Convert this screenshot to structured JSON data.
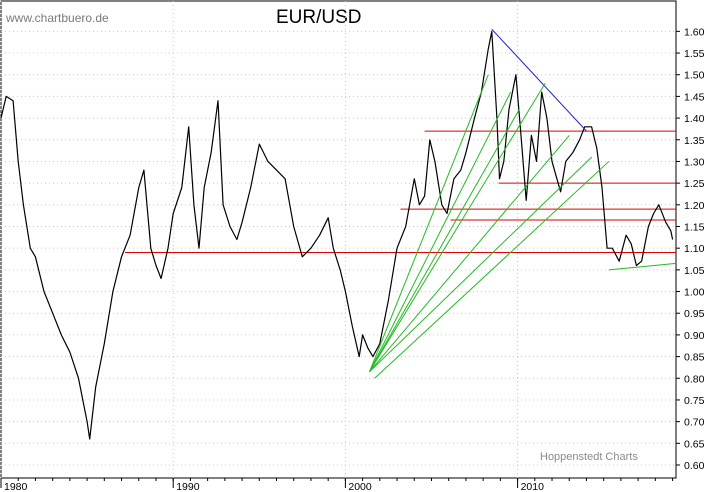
{
  "watermark": "www.chartbuero.de",
  "credit": "Hoppenstedt Charts",
  "chart_data": {
    "type": "line",
    "title": "EUR/USD",
    "xlabel": "",
    "ylabel": "",
    "x_ticks": [
      "1980",
      "1990",
      "2000",
      "2010"
    ],
    "y_ticks": [
      "0.60",
      "0.65",
      "0.70",
      "0.75",
      "0.80",
      "0.85",
      "0.90",
      "0.95",
      "1.00",
      "1.05",
      "1.10",
      "1.15",
      "1.20",
      "1.25",
      "1.30",
      "1.35",
      "1.40",
      "1.45",
      "1.50",
      "1.55",
      "1.60"
    ],
    "xlim": [
      1980,
      2019.2
    ],
    "ylim": [
      0.57,
      1.67
    ],
    "grid": true,
    "series": [
      {
        "color": "#000000",
        "points": [
          [
            1980.0,
            1.4
          ],
          [
            1980.3,
            1.45
          ],
          [
            1980.7,
            1.44
          ],
          [
            1981.0,
            1.3
          ],
          [
            1981.3,
            1.2
          ],
          [
            1981.7,
            1.1
          ],
          [
            1982.0,
            1.08
          ],
          [
            1982.5,
            1.0
          ],
          [
            1983.0,
            0.95
          ],
          [
            1983.5,
            0.9
          ],
          [
            1984.0,
            0.86
          ],
          [
            1984.5,
            0.8
          ],
          [
            1985.0,
            0.7
          ],
          [
            1985.15,
            0.66
          ],
          [
            1985.5,
            0.78
          ],
          [
            1986.0,
            0.88
          ],
          [
            1986.5,
            1.0
          ],
          [
            1987.0,
            1.08
          ],
          [
            1987.5,
            1.13
          ],
          [
            1988.0,
            1.24
          ],
          [
            1988.3,
            1.28
          ],
          [
            1988.7,
            1.1
          ],
          [
            1989.0,
            1.06
          ],
          [
            1989.3,
            1.03
          ],
          [
            1989.7,
            1.1
          ],
          [
            1990.0,
            1.18
          ],
          [
            1990.5,
            1.24
          ],
          [
            1990.9,
            1.38
          ],
          [
            1991.2,
            1.2
          ],
          [
            1991.5,
            1.1
          ],
          [
            1991.8,
            1.24
          ],
          [
            1992.2,
            1.32
          ],
          [
            1992.6,
            1.44
          ],
          [
            1992.9,
            1.2
          ],
          [
            1993.3,
            1.15
          ],
          [
            1993.7,
            1.12
          ],
          [
            1994.0,
            1.16
          ],
          [
            1994.5,
            1.24
          ],
          [
            1995.0,
            1.34
          ],
          [
            1995.5,
            1.3
          ],
          [
            1996.0,
            1.28
          ],
          [
            1996.5,
            1.26
          ],
          [
            1997.0,
            1.15
          ],
          [
            1997.5,
            1.08
          ],
          [
            1998.0,
            1.1
          ],
          [
            1998.5,
            1.13
          ],
          [
            1999.0,
            1.17
          ],
          [
            1999.3,
            1.1
          ],
          [
            1999.7,
            1.05
          ],
          [
            2000.0,
            1.0
          ],
          [
            2000.4,
            0.92
          ],
          [
            2000.8,
            0.85
          ],
          [
            2001.0,
            0.9
          ],
          [
            2001.3,
            0.87
          ],
          [
            2001.6,
            0.85
          ],
          [
            2002.0,
            0.88
          ],
          [
            2002.5,
            0.98
          ],
          [
            2003.0,
            1.1
          ],
          [
            2003.5,
            1.15
          ],
          [
            2004.0,
            1.26
          ],
          [
            2004.3,
            1.2
          ],
          [
            2004.6,
            1.22
          ],
          [
            2004.9,
            1.35
          ],
          [
            2005.2,
            1.3
          ],
          [
            2005.6,
            1.2
          ],
          [
            2005.9,
            1.18
          ],
          [
            2006.3,
            1.26
          ],
          [
            2006.7,
            1.28
          ],
          [
            2007.0,
            1.32
          ],
          [
            2007.5,
            1.4
          ],
          [
            2007.9,
            1.46
          ],
          [
            2008.3,
            1.56
          ],
          [
            2008.5,
            1.6
          ],
          [
            2008.8,
            1.4
          ],
          [
            2008.95,
            1.26
          ],
          [
            2009.2,
            1.3
          ],
          [
            2009.5,
            1.42
          ],
          [
            2009.9,
            1.5
          ],
          [
            2010.2,
            1.36
          ],
          [
            2010.5,
            1.21
          ],
          [
            2010.8,
            1.36
          ],
          [
            2011.1,
            1.3
          ],
          [
            2011.4,
            1.46
          ],
          [
            2011.7,
            1.4
          ],
          [
            2012.0,
            1.3
          ],
          [
            2012.5,
            1.23
          ],
          [
            2012.8,
            1.3
          ],
          [
            2013.2,
            1.32
          ],
          [
            2013.6,
            1.35
          ],
          [
            2013.9,
            1.38
          ],
          [
            2014.3,
            1.38
          ],
          [
            2014.6,
            1.33
          ],
          [
            2014.9,
            1.24
          ],
          [
            2015.2,
            1.1
          ],
          [
            2015.5,
            1.1
          ],
          [
            2015.9,
            1.07
          ],
          [
            2016.3,
            1.13
          ],
          [
            2016.6,
            1.11
          ],
          [
            2016.9,
            1.06
          ],
          [
            2017.2,
            1.07
          ],
          [
            2017.6,
            1.15
          ],
          [
            2017.9,
            1.18
          ],
          [
            2018.2,
            1.2
          ],
          [
            2018.6,
            1.16
          ],
          [
            2018.9,
            1.14
          ],
          [
            2019.0,
            1.12
          ]
        ]
      }
    ],
    "horizontal_lines": [
      {
        "y": 1.37,
        "x_start": 2004.6,
        "x_end": 2019.2,
        "color": "#e00000"
      },
      {
        "y": 1.25,
        "x_start": 2008.9,
        "x_end": 2019.2,
        "color": "#e00000"
      },
      {
        "y": 1.19,
        "x_start": 2003.2,
        "x_end": 2019.2,
        "color": "#e00000"
      },
      {
        "y": 1.165,
        "x_start": 2006.1,
        "x_end": 2019.2,
        "color": "#e00000"
      },
      {
        "y": 1.09,
        "x_start": 1987.2,
        "x_end": 2019.2,
        "color": "#e00000"
      }
    ],
    "trend_lines": [
      {
        "x1": 2008.5,
        "y1": 1.605,
        "x2": 2014.0,
        "y2": 1.37,
        "color": "#2020d0"
      },
      {
        "x1": 2001.4,
        "y1": 0.815,
        "x2": 2008.3,
        "y2": 1.5,
        "color": "#22bb22"
      },
      {
        "x1": 2001.4,
        "y1": 0.815,
        "x2": 2009.6,
        "y2": 1.46,
        "color": "#22bb22"
      },
      {
        "x1": 2001.4,
        "y1": 0.815,
        "x2": 2010.1,
        "y2": 1.42,
        "color": "#22bb22"
      },
      {
        "x1": 2001.4,
        "y1": 0.815,
        "x2": 2011.6,
        "y2": 1.48,
        "color": "#22bb22"
      },
      {
        "x1": 2001.4,
        "y1": 0.815,
        "x2": 2013.0,
        "y2": 1.36,
        "color": "#22bb22"
      },
      {
        "x1": 2001.4,
        "y1": 0.815,
        "x2": 2014.3,
        "y2": 1.31,
        "color": "#22bb22"
      },
      {
        "x1": 2001.7,
        "y1": 0.8,
        "x2": 2015.3,
        "y2": 1.3,
        "color": "#22bb22"
      },
      {
        "x1": 2015.3,
        "y1": 1.05,
        "x2": 2019.2,
        "y2": 1.065,
        "color": "#22bb22"
      }
    ]
  }
}
